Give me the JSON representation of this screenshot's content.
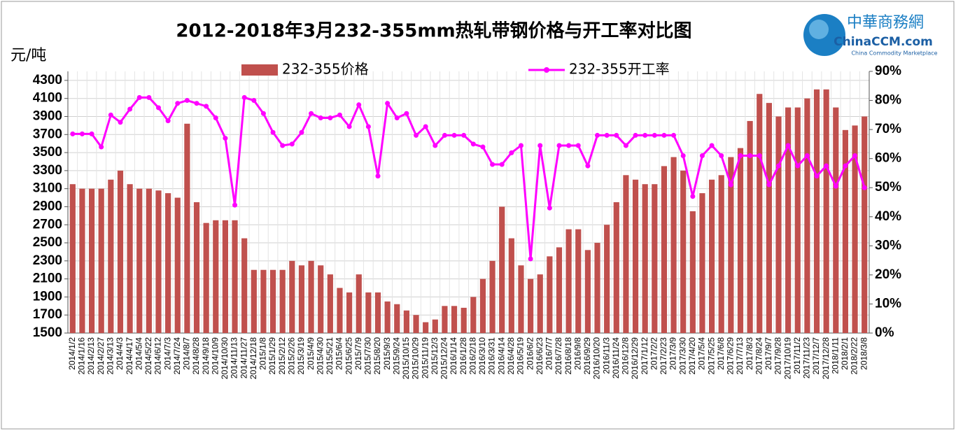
{
  "chart_data": {
    "type": "bar",
    "title": "2012-2018年3月232-355mm热轧带钢价格与开工率对比图",
    "y_label": "元/吨",
    "logo": {
      "name": "中華商務網",
      "site": "ChinaCCM.com",
      "tagline": "China Commodity Marketplace"
    },
    "categories": [
      "2014/1/2",
      "2014/1/16",
      "2014/2/13",
      "2014/2/27",
      "2014/3/13",
      "2014/4/3",
      "2014/4/17",
      "2014/5/4",
      "2014/5/22",
      "2014/6/12",
      "2014/7/3",
      "2014/7/24",
      "2014/8/7",
      "2014/8/28",
      "2014/9/18",
      "2014/10/9",
      "2014/10/30",
      "2014/11/13",
      "2014/11/27",
      "2014/12/18",
      "2015/1/8",
      "2015/1/29",
      "2015/2/12",
      "2015/2/26",
      "2015/3/19",
      "2015/4/9",
      "2015/4/30",
      "2015/5/21",
      "2015/6/4",
      "2015/6/25",
      "2015/7/9",
      "2015/7/30",
      "2015/8/20",
      "2015/9/3",
      "2015/9/24",
      "2015/10/15",
      "2015/10/29",
      "2015/11/19",
      "2015/12/3",
      "2015/12/24",
      "2016/1/14",
      "2016/1/28",
      "2016/2/18",
      "2016/3/10",
      "2016/3/31",
      "2016/4/14",
      "2016/4/28",
      "2016/5/19",
      "2016/6/2",
      "2016/6/23",
      "2016/7/7",
      "2016/7/28",
      "2016/8/18",
      "2016/9/8",
      "2016/9/29",
      "2016/10/20",
      "2016/11/3",
      "2016/11/24",
      "2016/12/8",
      "2016/12/29",
      "2017/1/12",
      "2017/2/2",
      "2017/2/23",
      "2017/3/9",
      "2017/3/30",
      "2017/4/20",
      "2017/5/4",
      "2017/5/25",
      "2017/6/8",
      "2017/6/29",
      "2017/7/13",
      "2017/8/3",
      "2017/8/24",
      "2017/9/7",
      "2017/9/28",
      "2017/10/19",
      "2017/11/2",
      "2017/11/23",
      "2017/12/7",
      "2017/12/28",
      "2018/1/11",
      "2018/2/1",
      "2018/2/22",
      "2018/3/8"
    ],
    "series": [
      {
        "name": "232-355价格",
        "type": "bar",
        "color": "#c0504d",
        "values": [
          3150,
          3100,
          3100,
          3100,
          3200,
          3300,
          3150,
          3100,
          3100,
          3080,
          3050,
          3000,
          3820,
          2950,
          2720,
          2750,
          2750,
          2750,
          2550,
          2200,
          2200,
          2200,
          2200,
          2300,
          2250,
          2300,
          2250,
          2150,
          2000,
          1950,
          2150,
          1950,
          1950,
          1850,
          1820,
          1750,
          1700,
          1620,
          1650,
          1800,
          1800,
          1780,
          1900,
          2100,
          2300,
          2900,
          2550,
          2250,
          2100,
          2150,
          2350,
          2450,
          2650,
          2650,
          2420,
          2500,
          2700,
          2950,
          3250,
          3200,
          3150,
          3150,
          3350,
          3450,
          3300,
          2850,
          3050,
          3200,
          3250,
          3450,
          3550,
          3850,
          4150,
          4050,
          3900,
          4000,
          4000,
          4100,
          4200,
          4200,
          4000,
          3750,
          3800,
          3900
        ]
      },
      {
        "name": "232-355开工率",
        "type": "line",
        "axis": "y2",
        "color": "#ff00ff",
        "values": [
          68.5,
          68.5,
          68.5,
          64,
          75,
          72.5,
          77,
          81,
          81,
          77.5,
          73,
          79,
          80,
          79,
          78,
          74,
          67,
          44,
          81,
          80,
          75.5,
          69,
          64.5,
          65,
          69,
          75.5,
          74,
          74,
          75,
          71,
          78.5,
          71,
          54,
          79,
          74,
          75.5,
          68,
          71,
          64.5,
          68,
          68,
          68,
          65,
          64,
          58,
          58,
          62,
          64.5,
          25.5,
          64.5,
          43,
          64.5,
          64.5,
          64.5,
          57.5,
          68,
          68,
          68,
          64.5,
          68,
          68,
          68,
          68,
          68,
          61,
          47,
          61,
          64.5,
          61,
          51,
          61,
          61,
          61,
          51,
          57.5,
          64.5,
          57.5,
          61,
          54,
          57.5,
          50.5,
          57.5,
          61,
          50
        ]
      }
    ],
    "ylim": [
      1500,
      4400
    ],
    "yticks": [
      1500,
      1700,
      1900,
      2100,
      2300,
      2500,
      2700,
      2900,
      3100,
      3300,
      3500,
      3700,
      3900,
      4100,
      4300
    ],
    "y2lim": [
      0,
      90
    ],
    "y2ticks": [
      {
        "value": 0,
        "label": "0%"
      },
      {
        "value": 10,
        "label": "10%"
      },
      {
        "value": 20,
        "label": "20%"
      },
      {
        "value": 30,
        "label": "30%"
      },
      {
        "value": 40,
        "label": "40%"
      },
      {
        "value": 50,
        "label": "50%"
      },
      {
        "value": 60,
        "label": "60%"
      },
      {
        "value": 70,
        "label": "70%"
      },
      {
        "value": 80,
        "label": "80%"
      },
      {
        "value": 90,
        "label": "90%"
      }
    ],
    "grid": true
  }
}
